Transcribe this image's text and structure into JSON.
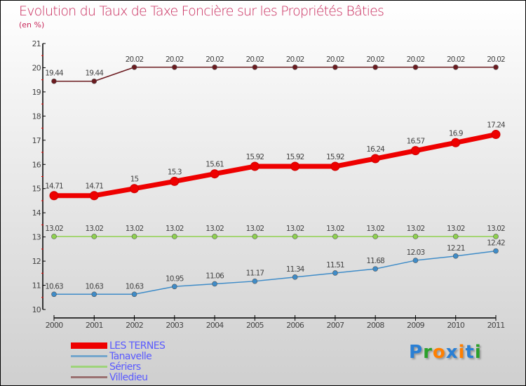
{
  "chart_data": {
    "type": "line",
    "title": "Evolution du Taux de Taxe Foncière sur les Propriétés Bâties",
    "subtitle": "(en %)",
    "x": [
      "2000",
      "2001",
      "2002",
      "2003",
      "2004",
      "2005",
      "2006",
      "2007",
      "2008",
      "2009",
      "2010",
      "2011"
    ],
    "ylim": [
      10,
      21
    ],
    "yticks": [
      "10",
      "11",
      "12",
      "13",
      "14",
      "15",
      "16",
      "17",
      "18",
      "19",
      "20",
      "21"
    ],
    "legend_position": "bottom-left",
    "series": [
      {
        "name": "Villedieu",
        "color": "#6b1a1f",
        "legend_color": "#9a7070",
        "width": 1.5,
        "values": [
          19.44,
          19.44,
          20.02,
          20.02,
          20.02,
          20.02,
          20.02,
          20.02,
          20.02,
          20.02,
          20.02,
          20.02
        ]
      },
      {
        "name": "Sériers",
        "color": "#8fd14f",
        "legend_color": "#9ed47a",
        "width": 1.5,
        "values": [
          13.02,
          13.02,
          13.02,
          13.02,
          13.02,
          13.02,
          13.02,
          13.02,
          13.02,
          13.02,
          13.02,
          13.02
        ]
      },
      {
        "name": "Tanavelle",
        "color": "#3f8cc8",
        "legend_color": "#74a6cc",
        "width": 1.5,
        "values": [
          10.63,
          10.63,
          10.63,
          10.95,
          11.06,
          11.17,
          11.34,
          11.51,
          11.68,
          12.03,
          12.21,
          12.42
        ]
      },
      {
        "name": "LES TERNES",
        "color": "#ee0000",
        "legend_color": "#ee0000",
        "width": 7,
        "values": [
          14.71,
          14.71,
          15.0,
          15.3,
          15.61,
          15.92,
          15.92,
          15.92,
          16.24,
          16.57,
          16.9,
          17.24
        ]
      }
    ]
  },
  "legend_order": [
    "LES TERNES",
    "Tanavelle",
    "Sériers",
    "Villedieu"
  ],
  "logo": {
    "text": "Proxiti"
  }
}
